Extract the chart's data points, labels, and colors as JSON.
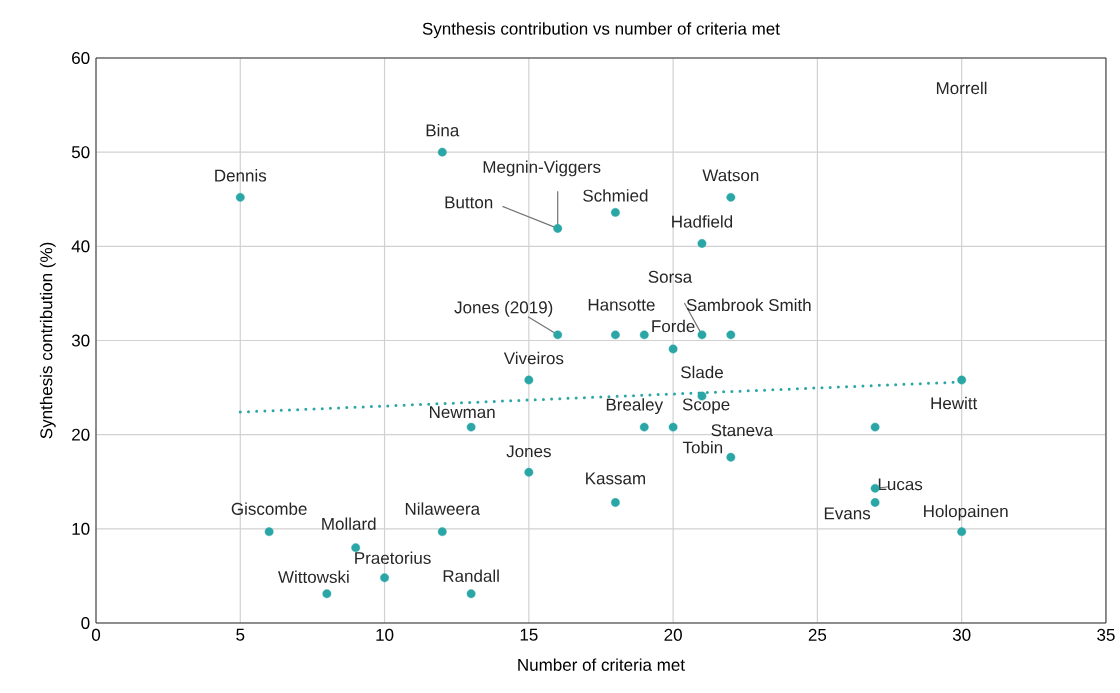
{
  "chart_data": {
    "type": "scatter",
    "title": "Synthesis contribution vs number of criteria met",
    "xlabel": "Number of criteria met",
    "ylabel": "Synthesis contribution (%)",
    "xlim": [
      0,
      35
    ],
    "ylim": [
      0,
      60
    ],
    "xticks": [
      0,
      5,
      10,
      15,
      20,
      25,
      30,
      35
    ],
    "yticks": [
      0,
      10,
      20,
      30,
      40,
      50,
      60
    ],
    "grid": true,
    "series": [
      {
        "color": "#2aa6a6",
        "marker": "circle",
        "x": [
          5,
          12,
          16,
          18,
          22,
          21,
          21,
          16,
          18,
          19,
          22,
          20,
          15,
          21,
          30,
          13,
          19,
          20,
          22,
          27,
          15,
          18,
          27,
          27,
          30,
          6,
          9,
          12,
          10,
          8,
          13
        ],
        "values": [
          45.2,
          50.0,
          41.9,
          43.6,
          45.2,
          40.3,
          30.6,
          30.6,
          30.6,
          30.6,
          30.6,
          29.1,
          25.8,
          24.1,
          25.8,
          20.8,
          20.8,
          20.8,
          17.6,
          20.8,
          16.0,
          12.8,
          14.3,
          12.8,
          9.7,
          9.7,
          8.0,
          9.7,
          4.8,
          3.1,
          3.1
        ]
      },
      {
        "type": "line",
        "color": "#2aa6a6",
        "x": [
          5,
          30
        ],
        "values": [
          22.4,
          25.6
        ],
        "line_style": "dotted",
        "marker": "none"
      }
    ],
    "annotations": [
      {
        "text": "Dennis",
        "x": 5,
        "y": 45.2
      },
      {
        "text": "Bina",
        "x": 12,
        "y": 50.0
      },
      {
        "text": "Megnin-Viggers",
        "x": 16,
        "y": 41.9
      },
      {
        "text": "Button",
        "x": 16,
        "y": 41.9
      },
      {
        "text": "Schmied",
        "x": 18,
        "y": 43.6
      },
      {
        "text": "Watson",
        "x": 22,
        "y": 45.2
      },
      {
        "text": "Hadfield",
        "x": 21,
        "y": 40.3
      },
      {
        "text": "Sorsa",
        "x": 21,
        "y": 30.6
      },
      {
        "text": "Jones (2019)",
        "x": 16,
        "y": 30.6
      },
      {
        "text": "Hansotte",
        "x": 18,
        "y": 30.6
      },
      {
        "text": "Sambrook Smith",
        "x": 22,
        "y": 30.6
      },
      {
        "text": "Forde",
        "x": 20,
        "y": 29.1
      },
      {
        "text": "Viveiros",
        "x": 15,
        "y": 25.8
      },
      {
        "text": "Slade",
        "x": 21,
        "y": 24.1
      },
      {
        "text": "Hewitt",
        "x": 30,
        "y": 25.8
      },
      {
        "text": "Newman",
        "x": 13,
        "y": 20.8
      },
      {
        "text": "Brealey",
        "x": 19,
        "y": 20.8
      },
      {
        "text": "Scope",
        "x": 20,
        "y": 20.8
      },
      {
        "text": "Staneva",
        "x": 22,
        "y": 17.6
      },
      {
        "text": "Tobin",
        "x": 22,
        "y": 17.6
      },
      {
        "text": "Jones",
        "x": 15,
        "y": 16.0
      },
      {
        "text": "Kassam",
        "x": 18,
        "y": 12.8
      },
      {
        "text": "Lucas",
        "x": 27,
        "y": 14.3
      },
      {
        "text": "Evans",
        "x": 27,
        "y": 12.8
      },
      {
        "text": "Holopainen",
        "x": 30,
        "y": 9.7
      },
      {
        "text": "Giscombe",
        "x": 6,
        "y": 9.7
      },
      {
        "text": "Mollard",
        "x": 9,
        "y": 8.0
      },
      {
        "text": "Nilaweera",
        "x": 12,
        "y": 9.7
      },
      {
        "text": "Praetorius",
        "x": 10,
        "y": 4.8
      },
      {
        "text": "Wittowski",
        "x": 8,
        "y": 3.1
      },
      {
        "text": "Randall",
        "x": 13,
        "y": 3.1
      },
      "Morrell"
    ]
  }
}
